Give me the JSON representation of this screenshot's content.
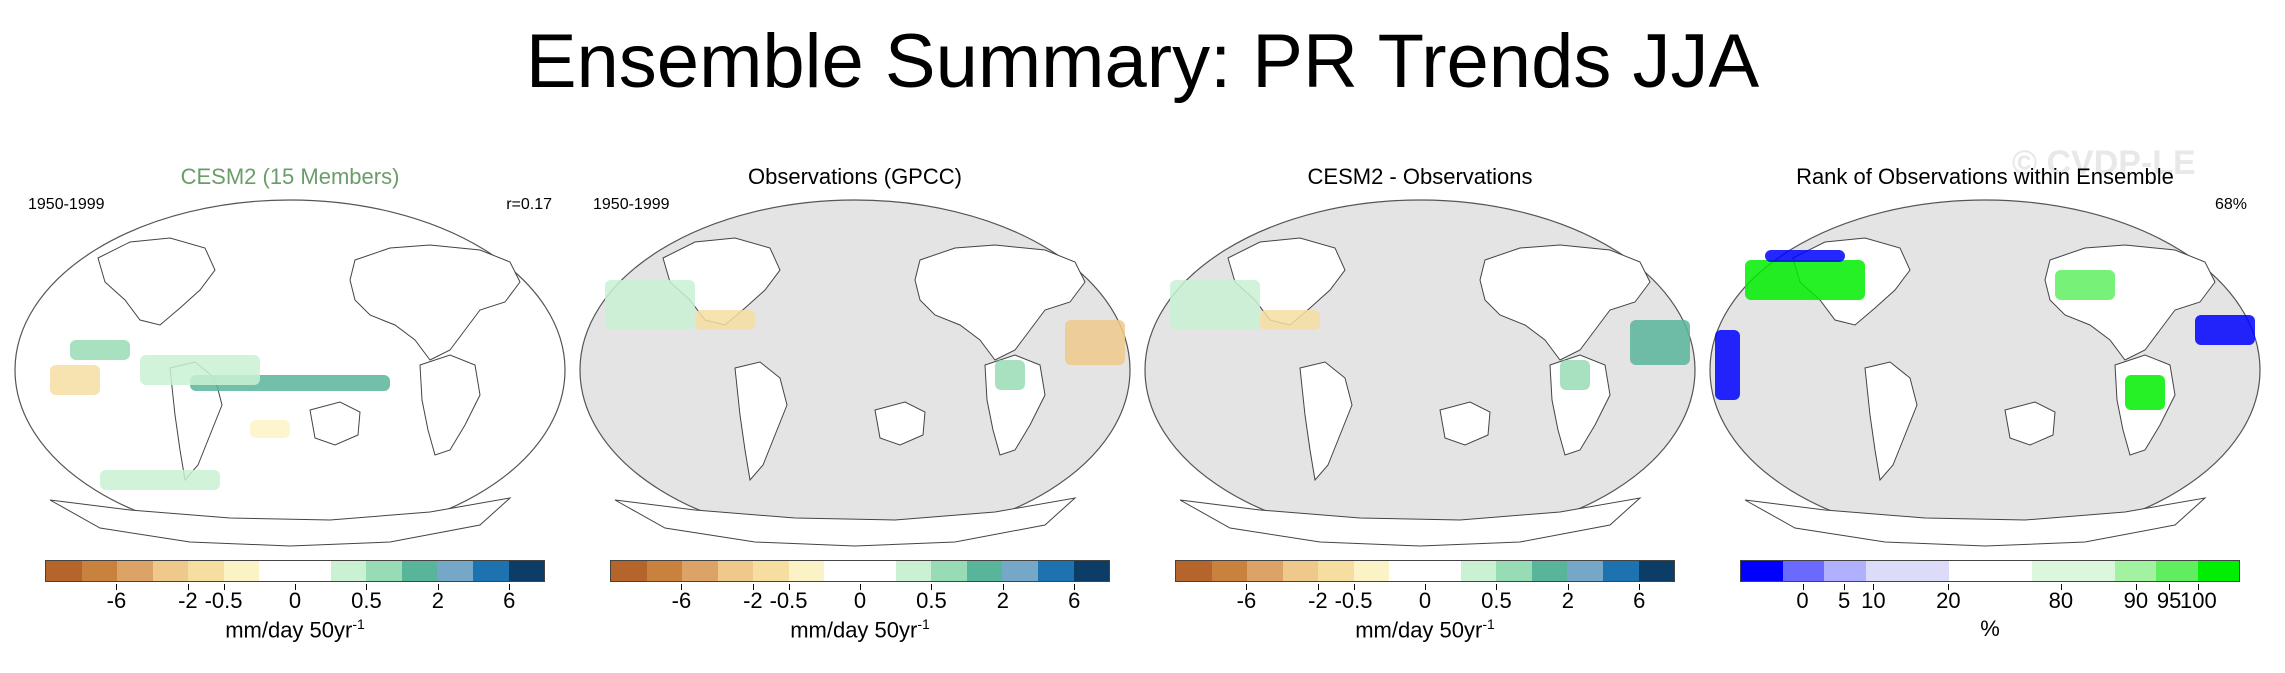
{
  "title": "Ensemble Summary: PR Trends JJA",
  "watermark": "© CVDP-LE",
  "chart_data": [
    {
      "type": "heatmap",
      "title": "CESM2 (15 Members)",
      "title_color": "#6a9d6a",
      "period": "1950-1999",
      "stat": "r=0.17",
      "colorbar": {
        "colors": [
          "#b5652b",
          "#c9823d",
          "#dba366",
          "#efc98b",
          "#f6dea1",
          "#fbf3c6",
          "#ffffff",
          "#ffffff",
          "#c9f1d2",
          "#98dcb5",
          "#59b59a",
          "#75a8c8",
          "#1d72b0",
          "#0c3d66"
        ],
        "tick_labels": [
          "-6",
          "-2",
          "-0.5",
          "0",
          "0.5",
          "2",
          "6"
        ],
        "units": "mm/day 50yr",
        "units_superscript": "-1"
      }
    },
    {
      "type": "heatmap",
      "title": "Observations (GPCC)",
      "title_color": "#000000",
      "period": "1950-1999",
      "stat": "",
      "colorbar": {
        "colors": [
          "#b5652b",
          "#c9823d",
          "#dba366",
          "#efc98b",
          "#f6dea1",
          "#fbf3c6",
          "#ffffff",
          "#ffffff",
          "#c9f1d2",
          "#98dcb5",
          "#59b59a",
          "#75a8c8",
          "#1d72b0",
          "#0c3d66"
        ],
        "tick_labels": [
          "-6",
          "-2",
          "-0.5",
          "0",
          "0.5",
          "2",
          "6"
        ],
        "units": "mm/day 50yr",
        "units_superscript": "-1"
      }
    },
    {
      "type": "heatmap",
      "title": "CESM2 - Observations",
      "title_color": "#000000",
      "period": "",
      "stat": "",
      "colorbar": {
        "colors": [
          "#b5652b",
          "#c9823d",
          "#dba366",
          "#efc98b",
          "#f6dea1",
          "#fbf3c6",
          "#ffffff",
          "#ffffff",
          "#c9f1d2",
          "#98dcb5",
          "#59b59a",
          "#75a8c8",
          "#1d72b0",
          "#0c3d66"
        ],
        "tick_labels": [
          "-6",
          "-2",
          "-0.5",
          "0",
          "0.5",
          "2",
          "6"
        ],
        "units": "mm/day 50yr",
        "units_superscript": "-1"
      }
    },
    {
      "type": "heatmap",
      "title": "Rank of Observations within Ensemble",
      "title_color": "#000000",
      "period": "",
      "stat": "68%",
      "colorbar": {
        "colors": [
          "#0000ff",
          "#6a6aff",
          "#b0b0ff",
          "#dcdcf8",
          "#dcdcf8",
          "#ffffff",
          "#ffffff",
          "#dcf8dc",
          "#dcf8dc",
          "#a2f2a2",
          "#60ee60",
          "#00ee00"
        ],
        "tick_labels": [
          "0",
          "5",
          "10",
          "20",
          "80",
          "90",
          "95",
          "100"
        ],
        "units": "%",
        "units_superscript": ""
      }
    }
  ]
}
